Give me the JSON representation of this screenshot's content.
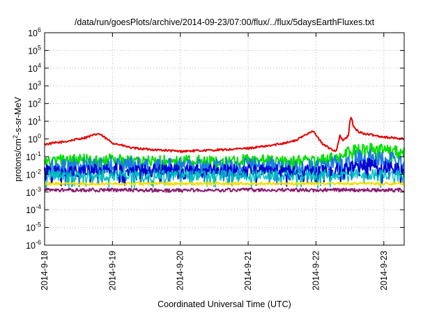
{
  "chart_data": {
    "type": "line",
    "title": "/data/run/goesPlots/archive/2014-09-23/07:00/flux/../flux/5daysEarthFluxes.txt",
    "xlabel": "Coordinated Universal Time (UTC)",
    "ylabel": {
      "base": "protons/cm",
      "sup": "2",
      "rest": "-s-sr-MeV"
    },
    "yscale": "log",
    "ylim_exp": [
      -6,
      6
    ],
    "xlim_days": [
      0,
      5.3
    ],
    "grid": true,
    "legend": "none",
    "x_ticks": [
      {
        "label": "2014-9-18",
        "day": 0
      },
      {
        "label": "2014-9-19",
        "day": 1
      },
      {
        "label": "2014-9-20",
        "day": 2
      },
      {
        "label": "2014-9-21",
        "day": 3
      },
      {
        "label": "2014-9-22",
        "day": 4
      },
      {
        "label": "2014-9-23",
        "day": 5
      }
    ],
    "series": [
      {
        "color": "#e60000",
        "width": 2,
        "x": [
          0,
          0.3,
          0.6,
          0.8,
          1.0,
          1.3,
          1.6,
          2.0,
          2.3,
          2.7,
          3.0,
          3.3,
          3.7,
          3.95,
          4.1,
          4.2,
          4.3,
          4.35,
          4.4,
          4.48,
          4.5,
          4.52,
          4.55,
          4.6,
          4.7,
          5.0,
          5.3
        ],
        "y": [
          0.5,
          0.7,
          1.2,
          2.0,
          0.6,
          0.3,
          0.25,
          0.2,
          0.22,
          0.25,
          0.3,
          0.4,
          0.8,
          3.0,
          0.5,
          0.3,
          0.2,
          1.5,
          0.8,
          1.5,
          10.0,
          20.0,
          5.0,
          3.0,
          2.0,
          1.3,
          1.0
        ],
        "jitter": 0.06
      },
      {
        "color": "#00e000",
        "width": 2,
        "x": [
          0,
          0.5,
          1.0,
          1.5,
          2.0,
          2.5,
          3.0,
          3.5,
          4.0,
          4.3,
          4.5,
          4.7,
          5.0,
          5.3
        ],
        "y": [
          0.06,
          0.07,
          0.08,
          0.06,
          0.06,
          0.06,
          0.07,
          0.06,
          0.06,
          0.09,
          0.2,
          0.35,
          0.25,
          0.18
        ],
        "jitter": 0.3
      },
      {
        "color": "#1e7ae6",
        "width": 2,
        "x": [
          0,
          0.5,
          1.0,
          1.5,
          2.0,
          2.5,
          3.0,
          3.5,
          4.0,
          4.3,
          4.5,
          4.7,
          5.0,
          5.3
        ],
        "y": [
          0.025,
          0.03,
          0.035,
          0.03,
          0.03,
          0.03,
          0.03,
          0.03,
          0.03,
          0.04,
          0.07,
          0.1,
          0.08,
          0.05
        ],
        "jitter": 0.45
      },
      {
        "color": "#0000d0",
        "width": 2,
        "x": [
          0,
          0.5,
          1.0,
          1.5,
          2.0,
          2.5,
          3.0,
          3.5,
          4.0,
          4.3,
          4.5,
          4.7,
          5.0,
          5.3
        ],
        "y": [
          0.015,
          0.016,
          0.018,
          0.016,
          0.016,
          0.016,
          0.017,
          0.016,
          0.016,
          0.018,
          0.025,
          0.04,
          0.025,
          0.02
        ],
        "jitter": 0.35
      },
      {
        "color": "#00c0c0",
        "width": 1.5,
        "x": [
          0,
          1.0,
          2.0,
          3.0,
          4.0,
          4.5,
          5.0,
          5.3
        ],
        "y": [
          0.009,
          0.009,
          0.009,
          0.009,
          0.009,
          0.01,
          0.01,
          0.01
        ],
        "jitter": 0.3
      },
      {
        "color": "#f0e000",
        "width": 2,
        "x": [
          0,
          1.0,
          2.0,
          3.0,
          4.0,
          5.0,
          5.3
        ],
        "y": [
          0.003,
          0.003,
          0.003,
          0.003,
          0.003,
          0.003,
          0.003
        ],
        "jitter": 0.08
      },
      {
        "color": "#8b1c6e",
        "width": 2,
        "x": [
          0,
          1.0,
          1.9,
          2.3,
          3.0,
          4.0,
          5.0,
          5.3
        ],
        "y": [
          0.0013,
          0.0013,
          0.0012,
          0.0013,
          0.0013,
          0.0013,
          0.0013,
          0.0013
        ],
        "jitter": 0.1
      }
    ]
  }
}
